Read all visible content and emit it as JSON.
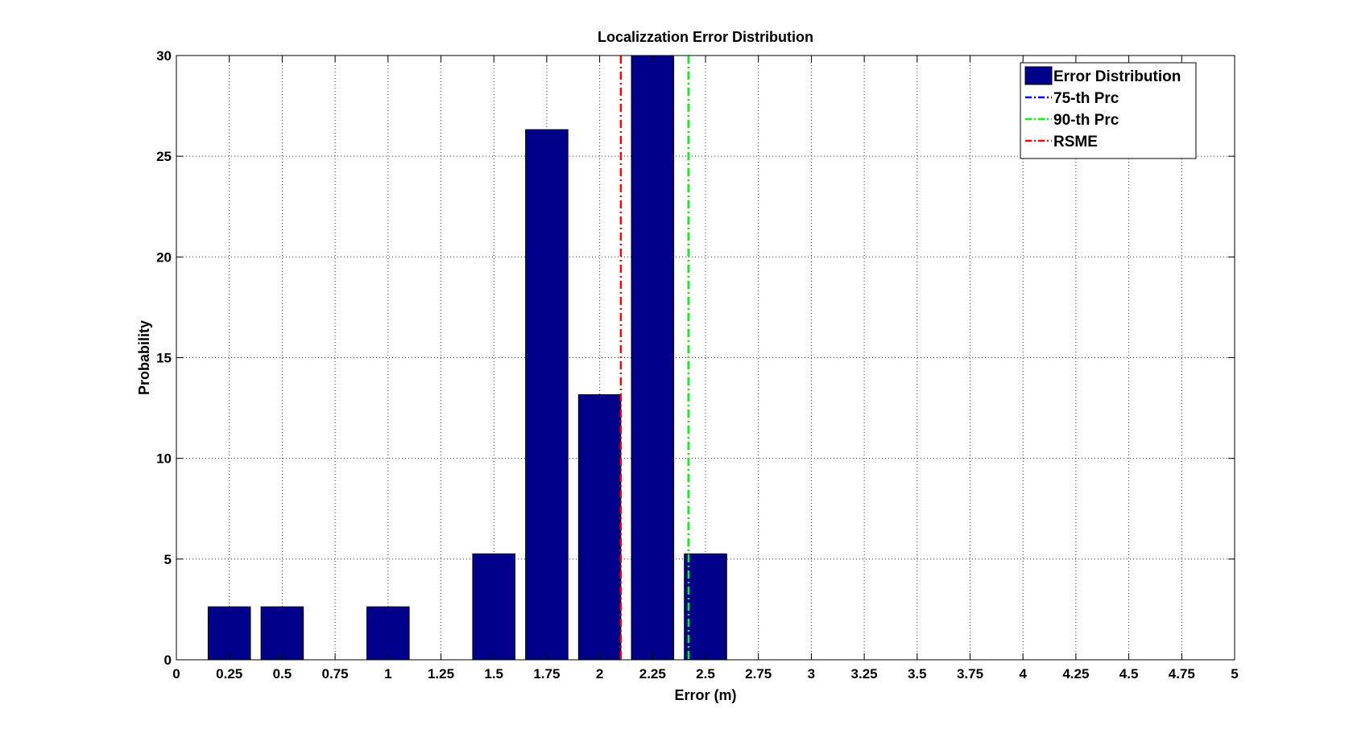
{
  "chart_data": {
    "type": "bar",
    "title": "Localizzation Error Distribution",
    "xlabel": "Error (m)",
    "ylabel": "Probability",
    "xlim": [
      0,
      5
    ],
    "ylim": [
      0,
      30
    ],
    "grid": true,
    "legend_position": "top-right",
    "x_ticks": [
      "0",
      "0.25",
      "0.5",
      "0.75",
      "1",
      "1.25",
      "1.5",
      "1.75",
      "2",
      "2.25",
      "2.5",
      "2.75",
      "3",
      "3.25",
      "3.5",
      "3.75",
      "4",
      "4.25",
      "4.5",
      "4.75",
      "5"
    ],
    "y_ticks": [
      "0",
      "5",
      "10",
      "15",
      "20",
      "25",
      "30"
    ],
    "x": [
      0.25,
      0.5,
      1.0,
      1.5,
      1.75,
      2.0,
      2.25,
      2.5
    ],
    "values": [
      2.63,
      2.63,
      2.63,
      5.26,
      26.32,
      13.16,
      30.0,
      5.26
    ],
    "bar_width": 0.2,
    "bar_color": "#00008b",
    "series": [
      {
        "name": "Error Distribution",
        "kind": "bar",
        "color": "#00008b"
      },
      {
        "name": "75-th Prc",
        "kind": "vline",
        "x": 2.42,
        "color": "#0000ff",
        "style": "dash-dot"
      },
      {
        "name": "90-th Prc",
        "kind": "vline",
        "x": 2.42,
        "color": "#00ff00",
        "style": "dash-dot"
      },
      {
        "name": "RSME",
        "kind": "vline",
        "x": 2.1,
        "color": "#ff0000",
        "style": "dash-dot"
      }
    ]
  }
}
